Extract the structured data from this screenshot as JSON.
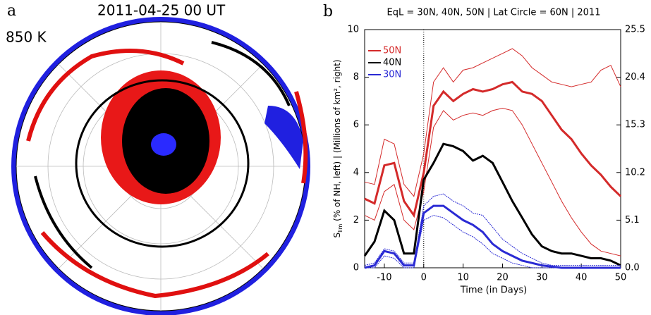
{
  "panel_a": {
    "label": "a",
    "title": "2011-04-25 00 UT",
    "level": "850 K"
  },
  "chart_data": {
    "type": "line",
    "panel_label": "b",
    "title": "EqL = 30N, 40N, 50N | Lat Circle = 60N | 2011",
    "xlabel": "Time (in Days)",
    "ylabel": "S (% of NH, left) | (Millions of km², right)",
    "ylabel_subscript": "lim",
    "x": [
      -15,
      -12.5,
      -10,
      -7.5,
      -5,
      -2.5,
      0,
      2.5,
      5,
      7.5,
      10,
      12.5,
      15,
      17.5,
      20,
      22.5,
      25,
      27.5,
      30,
      32.5,
      35,
      37.5,
      40,
      42.5,
      45,
      47.5,
      50
    ],
    "xlim": [
      -15,
      50
    ],
    "xticks": [
      -10,
      0,
      10,
      20,
      30,
      40,
      50
    ],
    "ylim": [
      0,
      10
    ],
    "yticks": [
      0,
      2,
      4,
      6,
      8,
      10
    ],
    "y2lim": [
      0,
      25.5
    ],
    "y2ticks": [
      {
        "value": 0,
        "label": "0.0"
      },
      5.1,
      10.2,
      15.3,
      20.4,
      25.5
    ],
    "vline": 0,
    "series": [
      {
        "name": "50N",
        "color": "#d42a2a",
        "values": [
          2.9,
          2.7,
          4.3,
          4.4,
          2.8,
          2.2,
          4.0,
          6.8,
          7.4,
          7.0,
          7.3,
          7.5,
          7.4,
          7.5,
          7.7,
          7.8,
          7.4,
          7.3,
          7.0,
          6.4,
          5.8,
          5.4,
          4.8,
          4.3,
          3.9,
          3.4,
          3.0
        ],
        "upper": [
          3.6,
          3.5,
          5.4,
          5.2,
          3.5,
          3.0,
          4.8,
          7.8,
          8.4,
          7.8,
          8.3,
          8.4,
          8.6,
          8.8,
          9.0,
          9.2,
          8.9,
          8.4,
          8.1,
          7.8,
          7.7,
          7.6,
          7.7,
          7.8,
          8.3,
          8.5,
          7.6
        ],
        "lower": [
          2.2,
          2.0,
          3.2,
          3.5,
          2.0,
          1.6,
          3.2,
          5.9,
          6.6,
          6.2,
          6.4,
          6.5,
          6.4,
          6.6,
          6.7,
          6.6,
          6.0,
          5.2,
          4.4,
          3.6,
          2.8,
          2.1,
          1.5,
          1.0,
          0.7,
          0.6,
          0.5
        ]
      },
      {
        "name": "40N",
        "color": "#000000",
        "values": [
          0.5,
          1.1,
          2.4,
          2.0,
          0.6,
          0.6,
          3.7,
          4.4,
          5.2,
          5.1,
          4.9,
          4.5,
          4.7,
          4.4,
          3.6,
          2.8,
          2.1,
          1.4,
          0.9,
          0.7,
          0.6,
          0.6,
          0.5,
          0.4,
          0.4,
          0.3,
          0.1
        ]
      },
      {
        "name": "30N",
        "color": "#2a2ad4",
        "values": [
          0,
          0.1,
          0.7,
          0.6,
          0.1,
          0.1,
          2.3,
          2.6,
          2.6,
          2.3,
          2.0,
          1.8,
          1.5,
          1.0,
          0.7,
          0.5,
          0.3,
          0.2,
          0.1,
          0.05,
          0,
          0,
          0,
          0,
          0,
          0,
          0
        ],
        "upper": [
          0.1,
          0.2,
          0.8,
          0.7,
          0.2,
          0.2,
          2.6,
          3.0,
          3.1,
          2.8,
          2.6,
          2.3,
          2.2,
          1.7,
          1.2,
          0.9,
          0.6,
          0.4,
          0.2,
          0.1,
          0.1,
          0.1,
          0.1,
          0.1,
          0.1,
          0.1,
          0.1
        ],
        "lower": [
          0,
          0,
          0.5,
          0.4,
          0,
          0,
          2.0,
          2.2,
          2.1,
          1.8,
          1.5,
          1.3,
          1.0,
          0.6,
          0.4,
          0.2,
          0.1,
          0,
          0,
          0,
          0,
          0,
          0,
          0,
          0,
          0,
          0
        ]
      }
    ]
  }
}
